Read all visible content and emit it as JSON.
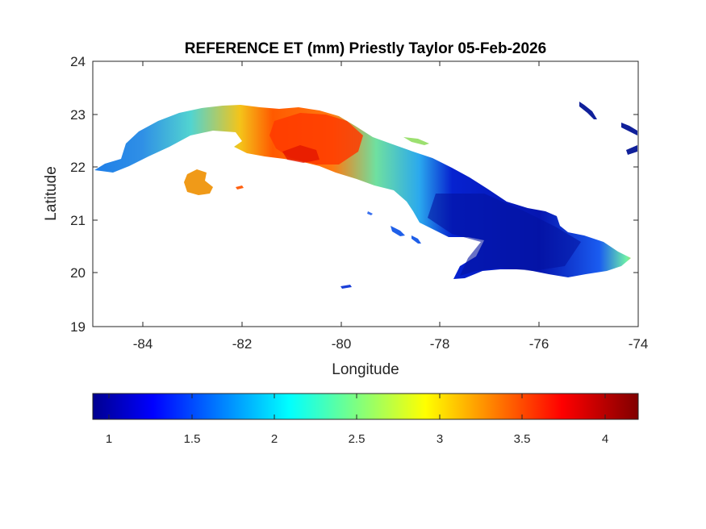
{
  "title": "REFERENCE ET (mm) Priestly Taylor 05-Feb-2026",
  "map": {
    "xlabel": "Longitude",
    "ylabel": "Latitude",
    "xlim": [
      -85,
      -74
    ],
    "ylim": [
      19,
      24
    ],
    "xticks": [
      "-84",
      "-82",
      "-80",
      "-78",
      "-76",
      "-74"
    ],
    "yticks": [
      "24",
      "23",
      "22",
      "21",
      "20",
      "19"
    ]
  },
  "colorbar": {
    "colormap": "jet",
    "range": [
      0.9,
      4.2
    ],
    "ticks": [
      "1",
      "1.5",
      "2",
      "2.5",
      "3",
      "3.5",
      "4"
    ],
    "orientation": "horizontal",
    "placement": "below"
  },
  "colors": {
    "jet": [
      "#00008f",
      "#0000ff",
      "#00ffff",
      "#ffff00",
      "#ff0000",
      "#800000"
    ],
    "low": "#0a1fc8",
    "mid": "#4fd6ce",
    "high": "#ff3b00"
  }
}
